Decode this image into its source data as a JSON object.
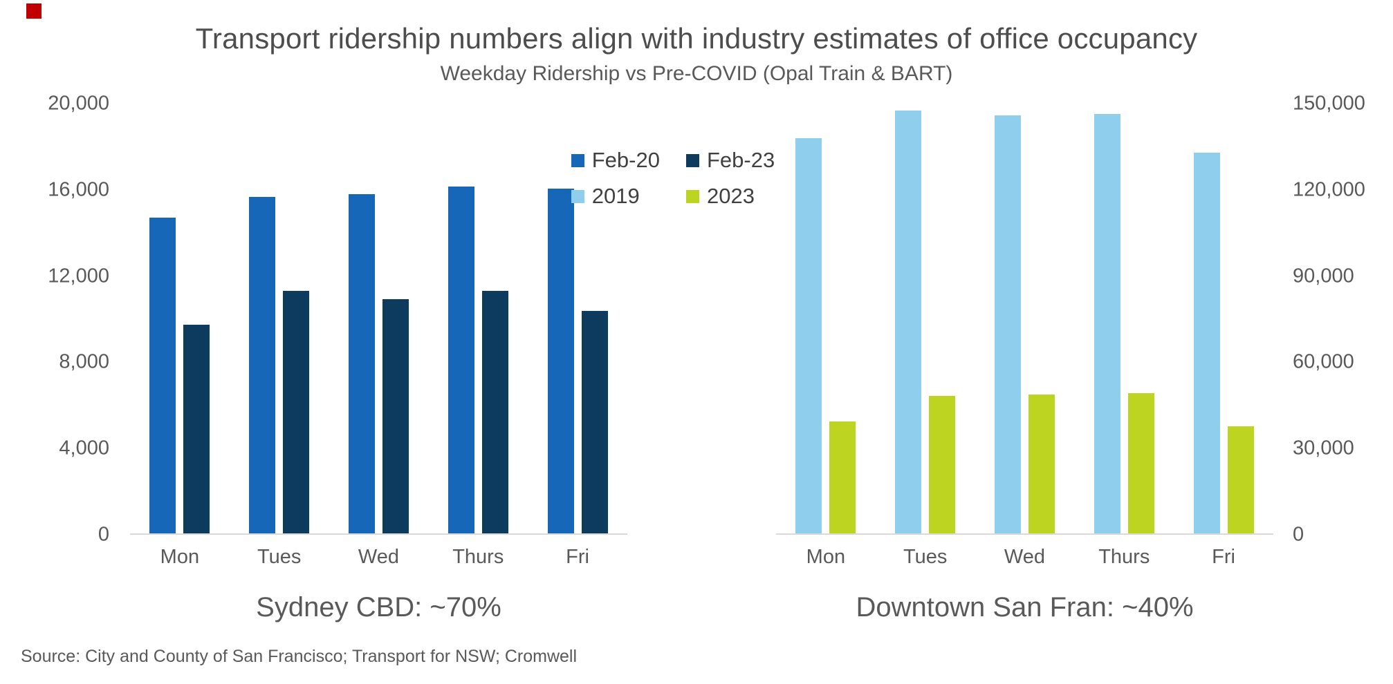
{
  "accent_color": "#C00000",
  "chart_data": {
    "type": "bar",
    "title": "Transport ridership numbers align with industry estimates of office occupancy",
    "subtitle": "Weekday Ridership vs Pre-COVID (Opal Train & BART)",
    "categories": [
      "Mon",
      "Tues",
      "Wed",
      "Thurs",
      "Fri"
    ],
    "grid": false,
    "legend": {
      "position": "top-center",
      "rows": [
        [
          "Feb-20",
          "Feb-23"
        ],
        [
          "2019",
          "2023"
        ]
      ]
    },
    "panels": [
      {
        "id": "sydney",
        "caption": "Sydney CBD: ~70%",
        "y_axis": {
          "side": "left",
          "min": 0,
          "max": 20000,
          "tick_labels": [
            "20,000",
            "16,000",
            "12,000",
            "8,000",
            "4,000",
            "0"
          ]
        },
        "series": [
          {
            "name": "Feb-20",
            "color": "#1767B9",
            "values": [
              14700,
              15650,
              15800,
              16150,
              16050
            ]
          },
          {
            "name": "Feb-23",
            "color": "#0D3B5E",
            "values": [
              9700,
              11300,
              10900,
              11300,
              10350
            ]
          }
        ]
      },
      {
        "id": "san-fran",
        "caption": "Downtown San Fran: ~40%",
        "y_axis": {
          "side": "right",
          "min": 0,
          "max": 150000,
          "tick_labels": [
            "150,000",
            "120,000",
            "90,000",
            "60,000",
            "30,000",
            "0"
          ]
        },
        "series": [
          {
            "name": "2019",
            "color": "#8FCEEC",
            "values": [
              138000,
              147500,
              146000,
              146500,
              133000
            ]
          },
          {
            "name": "2023",
            "color": "#BDD420",
            "values": [
              39000,
              48000,
              48500,
              49000,
              37500
            ]
          }
        ]
      }
    ],
    "source": "Source: City and County of San Francisco; Transport for NSW; Cromwell"
  }
}
